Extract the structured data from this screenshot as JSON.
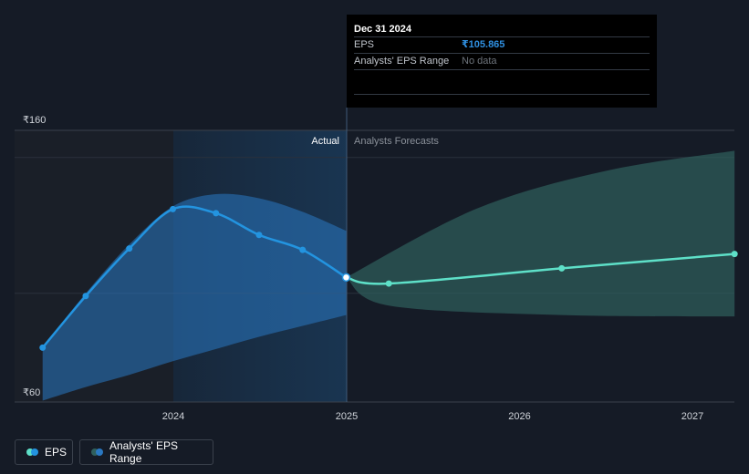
{
  "chart_data": {
    "type": "line",
    "currency_symbol": "₹",
    "y_axis": {
      "min": 60,
      "max": 160,
      "tick_labels": [
        "₹160",
        "₹60"
      ]
    },
    "x_axis": {
      "tick_labels": [
        "2024",
        "2025",
        "2026",
        "2027"
      ]
    },
    "section_labels": {
      "actual": "Actual",
      "forecast": "Analysts Forecasts"
    },
    "series": [
      {
        "name": "EPS",
        "color": "#2394e0",
        "points": [
          {
            "x": "2023-03-31",
            "y": 80.0
          },
          {
            "x": "2023-06-30",
            "y": 99.0
          },
          {
            "x": "2023-09-30",
            "y": 116.5
          },
          {
            "x": "2023-12-31",
            "y": 131.0
          },
          {
            "x": "2024-03-31",
            "y": 129.5
          },
          {
            "x": "2024-06-30",
            "y": 121.5
          },
          {
            "x": "2024-09-30",
            "y": 116.0
          },
          {
            "x": "2024-12-31",
            "y": 105.865
          }
        ]
      },
      {
        "name": "EPS Forecast",
        "color": "#5ee0c8",
        "points": [
          {
            "x": "2024-12-31",
            "y": 105.865
          },
          {
            "x": "2025-03-31",
            "y": 103.6
          },
          {
            "x": "2026-03-31",
            "y": 109.2
          },
          {
            "x": "2027-03-31",
            "y": 114.5
          }
        ]
      }
    ],
    "ranges": [
      {
        "name": "Analysts' EPS Range",
        "color": "#2a78c2",
        "upper": [
          {
            "x": "2023-03-31",
            "y": 80.0
          },
          {
            "x": "2023-06-30",
            "y": 100.0
          },
          {
            "x": "2023-09-30",
            "y": 118.0
          },
          {
            "x": "2023-12-31",
            "y": 132.0
          },
          {
            "x": "2024-03-31",
            "y": 136.5
          },
          {
            "x": "2024-06-30",
            "y": 135.0
          },
          {
            "x": "2024-09-30",
            "y": 130.0
          },
          {
            "x": "2024-12-31",
            "y": 123.0
          }
        ],
        "lower": [
          {
            "x": "2023-03-31",
            "y": 60.5
          },
          {
            "x": "2023-06-30",
            "y": 65.5
          },
          {
            "x": "2023-09-30",
            "y": 70.0
          },
          {
            "x": "2023-12-31",
            "y": 75.0
          },
          {
            "x": "2024-03-31",
            "y": 79.5
          },
          {
            "x": "2024-06-30",
            "y": 84.0
          },
          {
            "x": "2024-09-30",
            "y": 88.0
          },
          {
            "x": "2024-12-31",
            "y": 92.0
          }
        ]
      },
      {
        "name": "Analysts' EPS Range Forecast",
        "color": "#2f5f5c",
        "upper": [
          {
            "x": "2024-12-31",
            "y": 105.865
          },
          {
            "x": "2025-09-30",
            "y": 131.0
          },
          {
            "x": "2026-06-30",
            "y": 145.0
          },
          {
            "x": "2027-03-31",
            "y": 152.5
          }
        ],
        "lower": [
          {
            "x": "2024-12-31",
            "y": 105.865
          },
          {
            "x": "2025-03-31",
            "y": 95.5
          },
          {
            "x": "2026-03-31",
            "y": 92.0
          },
          {
            "x": "2027-03-31",
            "y": 91.5
          }
        ]
      }
    ],
    "highlight_point": {
      "x": "2024-12-31",
      "y": 105.865
    },
    "grid": true
  },
  "tooltip": {
    "date": "Dec 31 2024",
    "rows": [
      {
        "label": "EPS",
        "value": "₹105.865"
      },
      {
        "label": "Analysts' EPS Range",
        "value": "No data"
      }
    ]
  },
  "legend": {
    "items": [
      {
        "label": "EPS",
        "colors": [
          "#5ee0c8",
          "#2394e0"
        ]
      },
      {
        "label": "Analysts' EPS Range",
        "colors": [
          "#2f5f5c",
          "#2a78c2"
        ]
      }
    ]
  }
}
